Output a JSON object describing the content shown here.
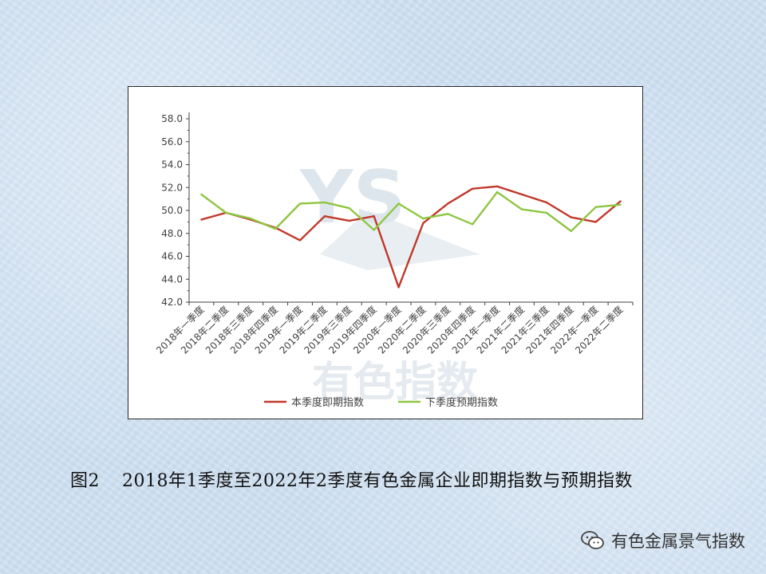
{
  "caption": {
    "figure_number": "图2",
    "text": "2018年1季度至2022年2季度有色金属企业即期指数与预期指数"
  },
  "source_mark": {
    "text": "有色金属景气指数",
    "icon": "wechat-icon"
  },
  "watermark": {
    "text": "有色指数",
    "logo_text": "YS"
  },
  "chart_data": {
    "type": "line",
    "categories": [
      "2018年一季度",
      "2018年二季度",
      "2018年三季度",
      "2018年四季度",
      "2019年一季度",
      "2019年二季度",
      "2019年三季度",
      "2019年四季度",
      "2020年一季度",
      "2020年二季度",
      "2020年三季度",
      "2020年四季度",
      "2021年一季度",
      "2021年二季度",
      "2021年三季度",
      "2021年四季度",
      "2022年一季度",
      "2022年二季度"
    ],
    "series": [
      {
        "name": "本季度即期指数",
        "color": "#c0392b",
        "values": [
          49.2,
          49.8,
          49.2,
          48.5,
          47.4,
          49.5,
          49.1,
          49.5,
          43.3,
          48.9,
          50.6,
          51.9,
          52.1,
          51.4,
          50.7,
          49.4,
          49.0,
          50.8
        ]
      },
      {
        "name": "下季度预期指数",
        "color": "#8ec641",
        "values": [
          51.4,
          49.8,
          49.3,
          48.4,
          50.6,
          50.7,
          50.2,
          48.3,
          50.6,
          49.3,
          49.7,
          48.8,
          51.6,
          50.1,
          49.8,
          48.2,
          50.3,
          50.5
        ]
      }
    ],
    "ylim": [
      42.0,
      58.0
    ],
    "yticks": [
      "42.0",
      "44.0",
      "46.0",
      "48.0",
      "50.0",
      "52.0",
      "54.0",
      "56.0",
      "58.0"
    ],
    "grid": false,
    "legend": "bottom"
  }
}
